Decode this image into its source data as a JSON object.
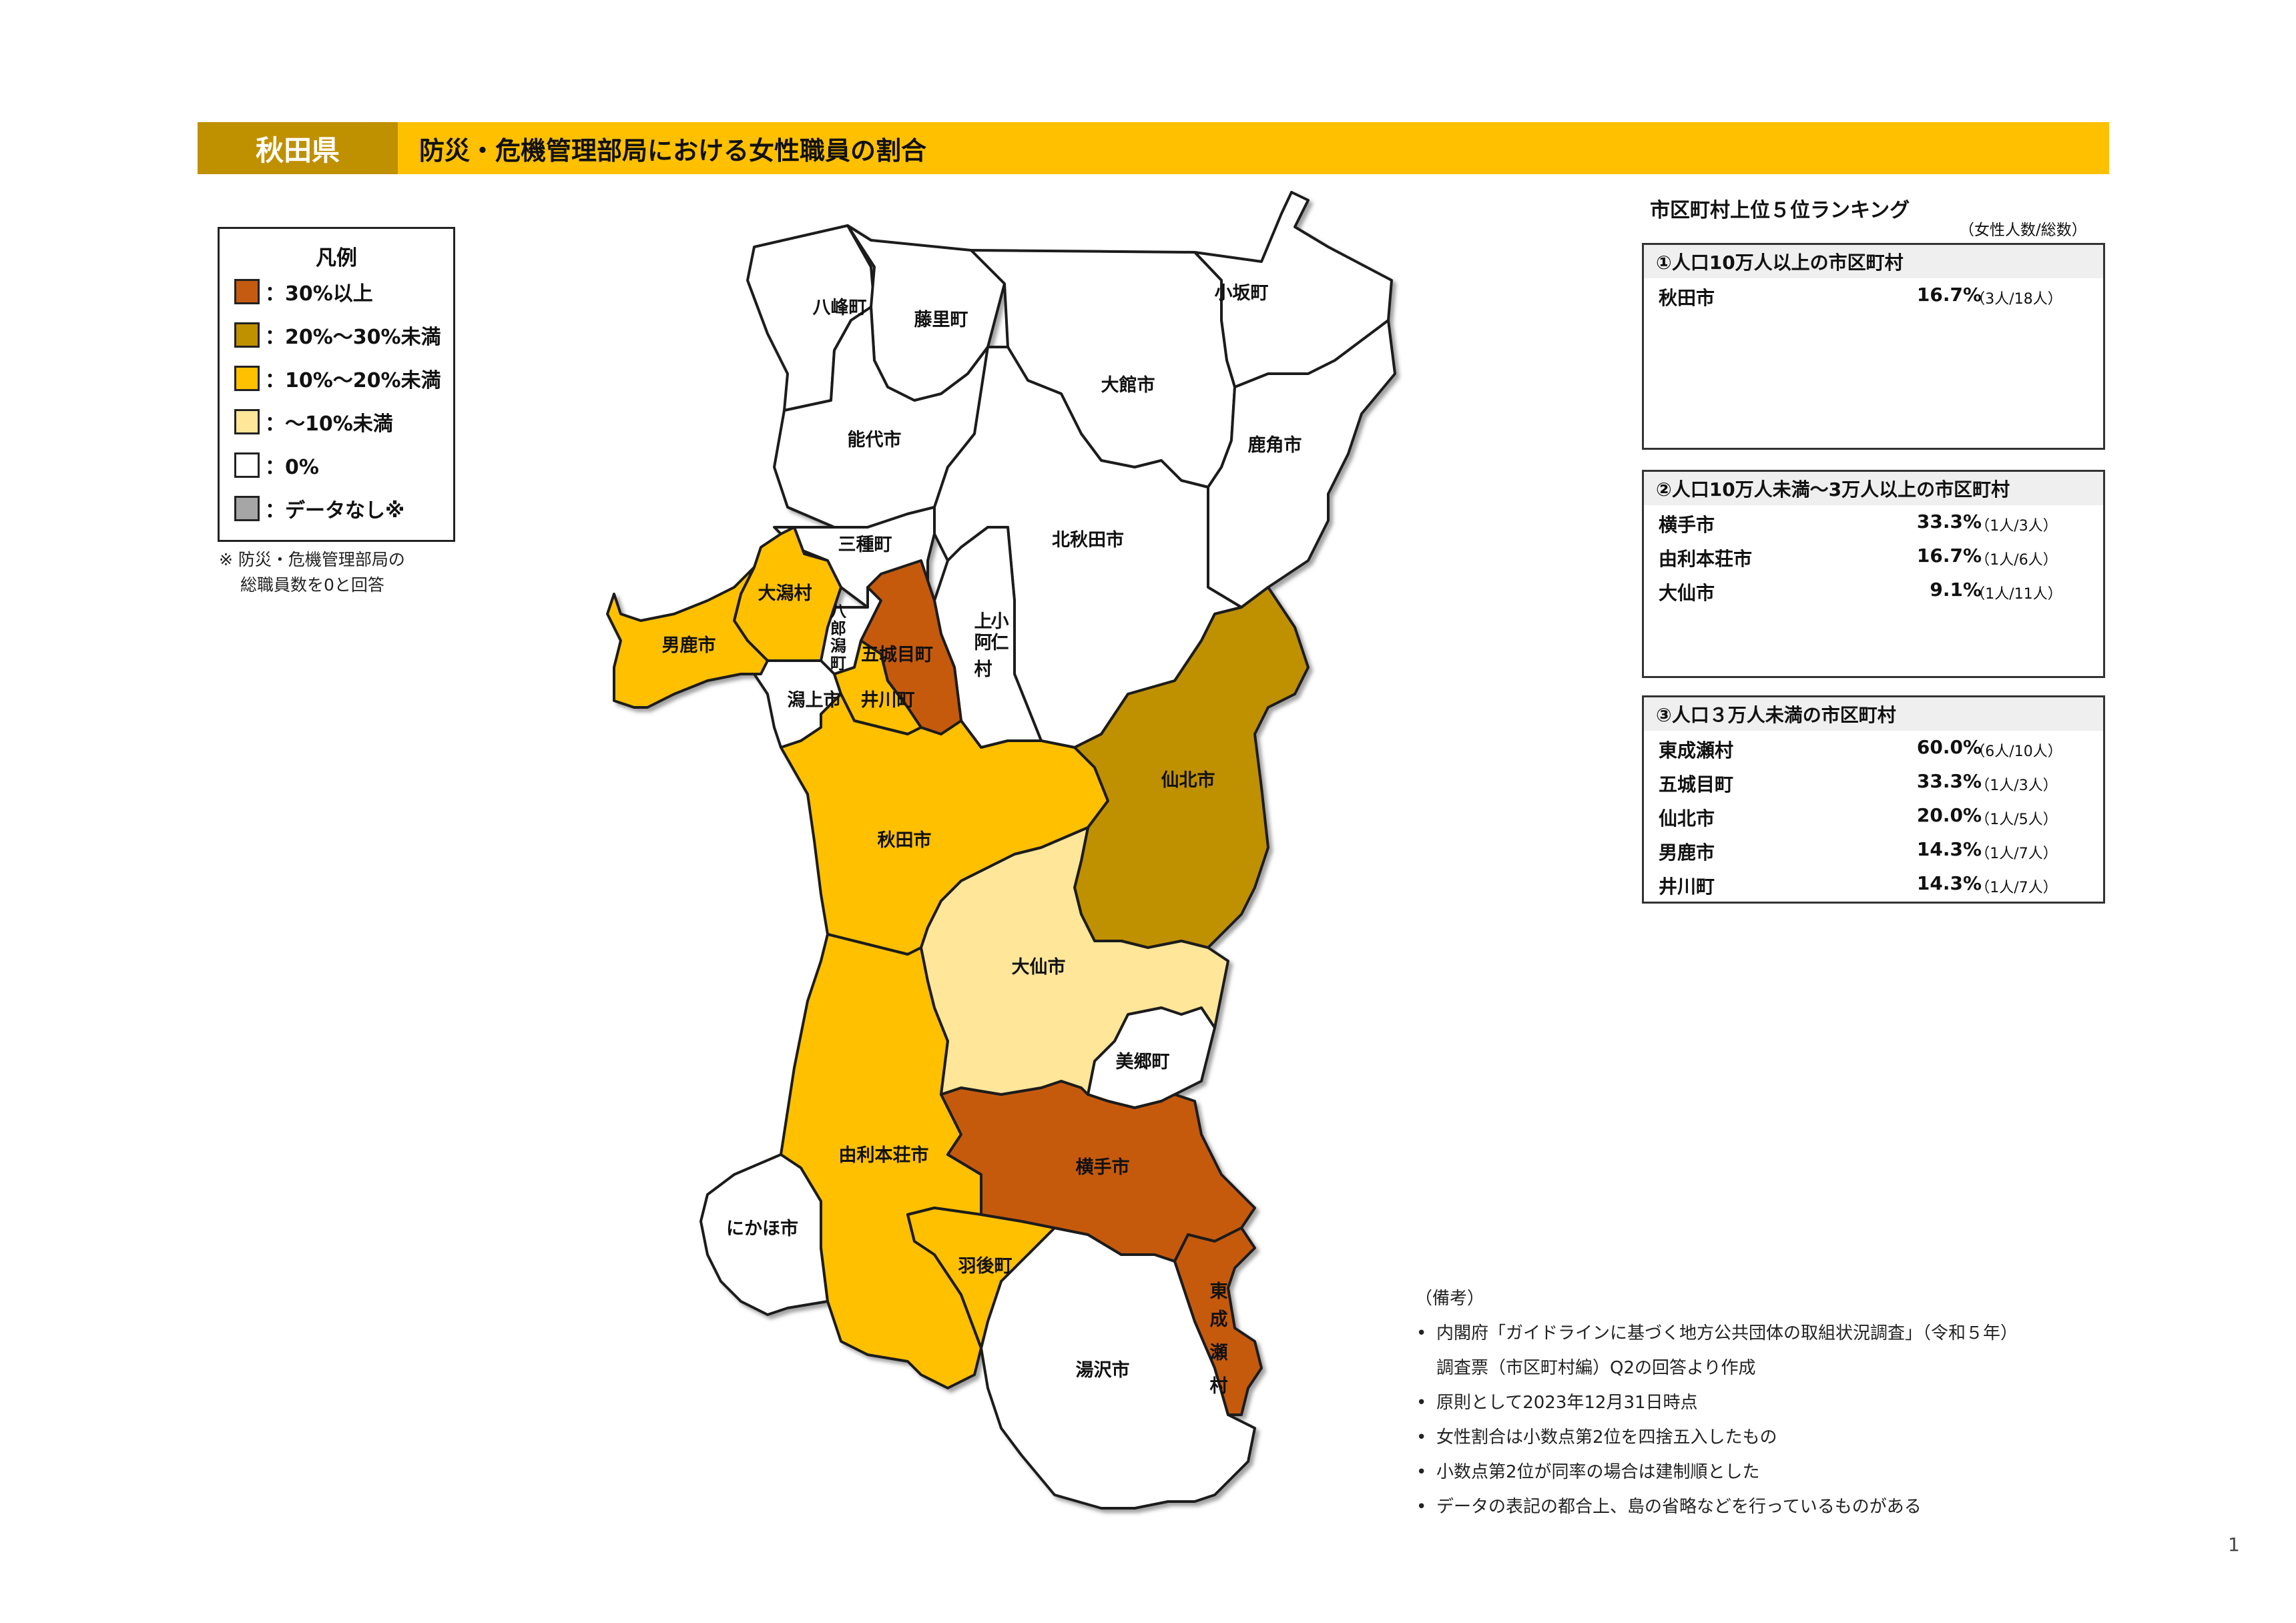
{
  "header": {
    "prefecture": "秋田県",
    "title": "防災・危機管理部局における女性職員の割合"
  },
  "legend": {
    "title": "凡例",
    "items": [
      {
        "label": "：30%以上",
        "color": "#C55A11"
      },
      {
        "label": "：20%～30%未満",
        "color": "#BF9000"
      },
      {
        "label": "：10%～20%未満",
        "color": "#FFC000"
      },
      {
        "label": "：～10%未満",
        "color": "#FFE699"
      },
      {
        "label": "：0%",
        "color": "#FFFFFF"
      },
      {
        "label": "：データなし※",
        "color": "#A6A6A6"
      }
    ],
    "note_line1": "※ 防災・危機管理部局の",
    "note_line2": "総職員数を0と回答"
  },
  "map": {
    "municipalities": [
      {
        "name": "八峰町",
        "category": "0%"
      },
      {
        "name": "藤里町",
        "category": "0%"
      },
      {
        "name": "小坂町",
        "category": "0%"
      },
      {
        "name": "大館市",
        "category": "0%"
      },
      {
        "name": "能代市",
        "category": "0%"
      },
      {
        "name": "鹿角市",
        "category": "0%"
      },
      {
        "name": "三種町",
        "category": "0%"
      },
      {
        "name": "北秋田市",
        "category": "0%"
      },
      {
        "name": "大潟村",
        "category": "10%～20%未満"
      },
      {
        "name": "八郎潟町",
        "category": "0%"
      },
      {
        "name": "上小阿仁村",
        "category": "0%"
      },
      {
        "name": "男鹿市",
        "category": "10%～20%未満"
      },
      {
        "name": "五城目町",
        "category": "30%以上"
      },
      {
        "name": "潟上市",
        "category": "0%"
      },
      {
        "name": "井川町",
        "category": "10%～20%未満"
      },
      {
        "name": "仙北市",
        "category": "20%～30%未満"
      },
      {
        "name": "秋田市",
        "category": "10%～20%未満"
      },
      {
        "name": "大仙市",
        "category": "～10%未満"
      },
      {
        "name": "美郷町",
        "category": "0%"
      },
      {
        "name": "横手市",
        "category": "30%以上"
      },
      {
        "name": "由利本荘市",
        "category": "10%～20%未満"
      },
      {
        "name": "にかほ市",
        "category": "0%"
      },
      {
        "name": "羽後町",
        "category": "10%～20%未満"
      },
      {
        "name": "東成瀬村",
        "category": "30%以上"
      },
      {
        "name": "湯沢市",
        "category": "0%"
      }
    ],
    "label_hachirogata": [
      "八",
      "郎",
      "潟",
      "町"
    ],
    "label_kamikoani": [
      "上",
      "小",
      "阿",
      "仁",
      "村"
    ],
    "label_higashinaruse": [
      "東",
      "成",
      "瀬",
      "村"
    ]
  },
  "ranking": {
    "title": "市区町村上位５位ランキング",
    "unit_note": "（女性人数/総数）",
    "groups": [
      {
        "title": "①人口10万人以上の市区町村",
        "rows": [
          {
            "name": "秋田市",
            "pct": "16.7%",
            "count": "（3人/18人）"
          }
        ]
      },
      {
        "title": "②人口10万人未満～3万人以上の市区町村",
        "rows": [
          {
            "name": "横手市",
            "pct": "33.3%",
            "count": "（1人/3人）"
          },
          {
            "name": "由利本荘市",
            "pct": "16.7%",
            "count": "（1人/6人）"
          },
          {
            "name": "大仙市",
            "pct": "9.1%",
            "count": "（1人/11人）"
          }
        ]
      },
      {
        "title": "③人口３万人未満の市区町村",
        "rows": [
          {
            "name": "東成瀬村",
            "pct": "60.0%",
            "count": "（6人/10人）"
          },
          {
            "name": "五城目町",
            "pct": "33.3%",
            "count": "（1人/3人）"
          },
          {
            "name": "仙北市",
            "pct": "20.0%",
            "count": "（1人/5人）"
          },
          {
            "name": "男鹿市",
            "pct": "14.3%",
            "count": "（1人/7人）"
          },
          {
            "name": "井川町",
            "pct": "14.3%",
            "count": "（1人/7人）"
          }
        ]
      }
    ]
  },
  "notes": {
    "heading": "（備考）",
    "bullet": "•",
    "items": [
      "内閣府「ガイドラインに基づく地方公共団体の取組状況調査」（令和５年）",
      "原則として2023年12月31日時点",
      "女性割合は小数点第2位を四捨五入したもの",
      "小数点第2位が同率の場合は建制順とした",
      "データの表記の都合上、島の省略などを行っているものがある"
    ],
    "item1_cont": "調査票（市区町村編）Q2の回答より作成"
  },
  "page_number": "1"
}
